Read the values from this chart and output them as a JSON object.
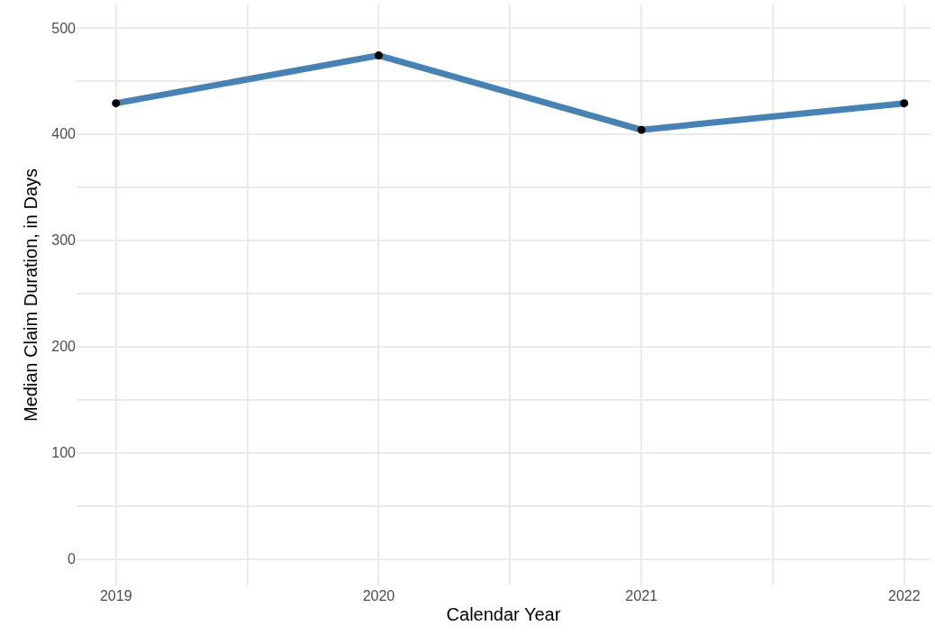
{
  "chart_data": {
    "type": "line",
    "xlabel": "Calendar Year",
    "ylabel": "Median Claim Duration, in Days",
    "x": [
      2019,
      2020,
      2021,
      2022
    ],
    "series": [
      {
        "color": "#4682b4",
        "values": [
          429,
          474,
          404,
          429
        ]
      },
      {
        "type": "scatter",
        "color": "#000000",
        "marker": "circle",
        "values": [
          429,
          474,
          404,
          429
        ]
      }
    ],
    "xlim": [
      2018.85,
      2022.1
    ],
    "ylim": [
      -25,
      522
    ],
    "xticks": [
      2019,
      {
        "value": 2019.5,
        "label": null
      },
      2020,
      {
        "value": 2020.5,
        "label": null
      },
      2021,
      {
        "value": 2021.5,
        "label": null
      },
      2022
    ],
    "yticks": [
      0,
      {
        "value": 50,
        "label": null
      },
      100,
      {
        "value": 150,
        "label": null
      },
      200,
      {
        "value": 250,
        "label": null
      },
      300,
      {
        "value": 350,
        "label": null
      },
      400,
      {
        "value": 450,
        "label": null
      },
      500
    ],
    "grid": true
  }
}
